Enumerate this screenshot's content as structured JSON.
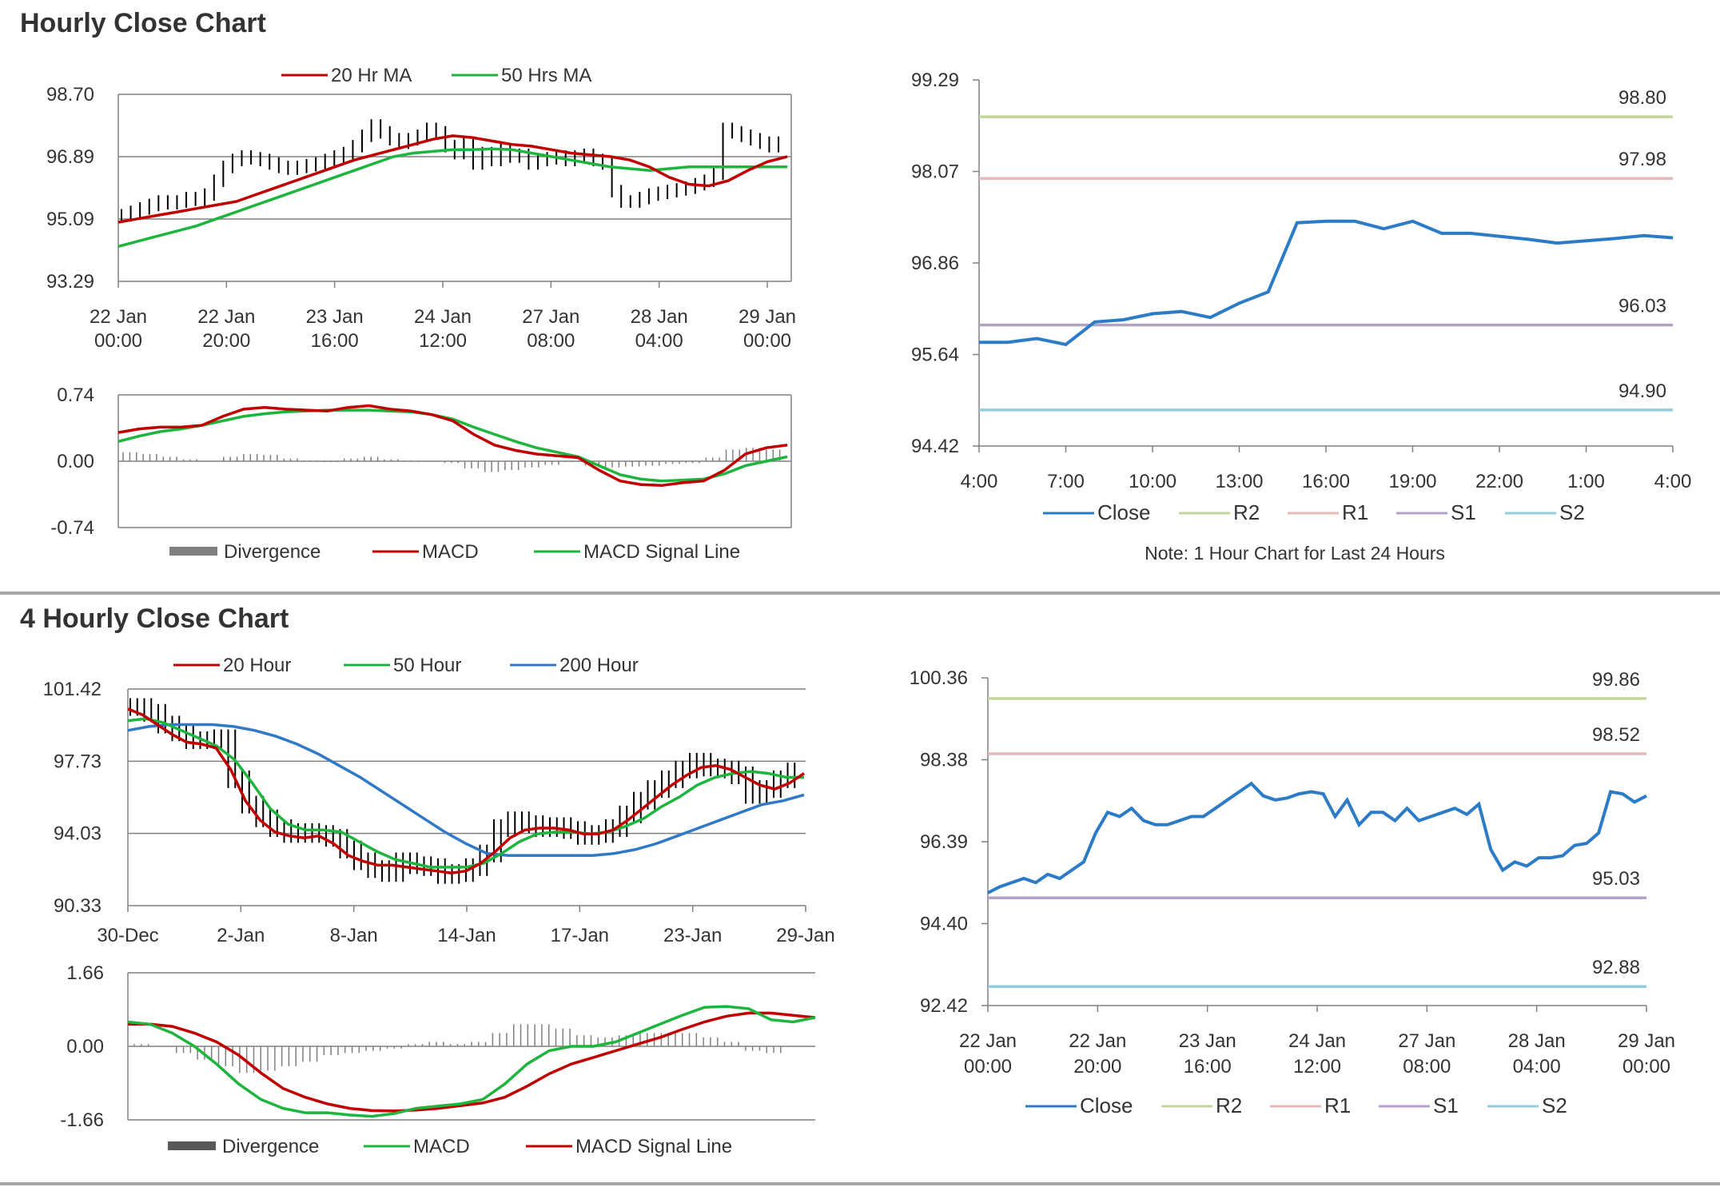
{
  "sections": {
    "hourly_title": "Hourly Close Chart",
    "four_hourly_title": "4 Hourly Close Chart"
  },
  "colors": {
    "ma_red": "#c00000",
    "ma_green": "#1db53e",
    "ma_blue": "#2f79c7",
    "close_blue": "#2b7bc6",
    "r2": "#c3d69b",
    "r1": "#e6b9b8",
    "s1": "#b3a2c7",
    "s2": "#93cddd",
    "grid": "#808080",
    "divergence": "#7f7f7f"
  },
  "chart_data": [
    {
      "id": "hourly-price",
      "type": "line",
      "legend": [
        "20 Hr MA",
        "50 Hrs MA"
      ],
      "ylim": [
        93.29,
        98.7
      ],
      "yticks": [
        "98.70",
        "96.89",
        "95.09",
        "93.29"
      ],
      "xticks": [
        [
          "22 Jan",
          "00:00"
        ],
        [
          "22 Jan",
          "20:00"
        ],
        [
          "23 Jan",
          "16:00"
        ],
        [
          "24 Jan",
          "12:00"
        ],
        [
          "27 Jan",
          "08:00"
        ],
        [
          "28 Jan",
          "04:00"
        ],
        [
          "29 Jan",
          "00:00"
        ]
      ],
      "close": [
        95.2,
        95.3,
        95.4,
        95.5,
        95.6,
        95.55,
        95.6,
        95.7,
        95.65,
        95.8,
        96.2,
        96.6,
        96.8,
        96.9,
        96.85,
        96.8,
        96.7,
        96.6,
        96.55,
        96.6,
        96.65,
        96.7,
        96.8,
        96.9,
        97.0,
        97.2,
        97.5,
        97.8,
        97.6,
        97.4,
        97.3,
        97.4,
        97.5,
        97.7,
        97.6,
        97.2,
        97.0,
        97.3,
        96.7,
        97.0,
        96.8,
        97.1,
        96.9,
        96.95,
        96.7,
        96.8,
        96.85,
        96.9,
        96.8,
        96.9,
        96.95,
        96.8,
        96.7,
        95.9,
        95.6,
        95.6,
        95.7,
        95.8,
        95.85,
        95.9,
        95.95,
        96.0,
        96.1,
        96.2,
        96.4,
        97.7,
        97.6,
        97.5,
        97.4,
        97.3,
        97.2,
        97.3
      ],
      "ma20": [
        95.0,
        95.1,
        95.2,
        95.3,
        95.4,
        95.5,
        95.6,
        95.8,
        96.0,
        96.2,
        96.4,
        96.6,
        96.8,
        96.95,
        97.1,
        97.25,
        97.4,
        97.5,
        97.45,
        97.35,
        97.25,
        97.2,
        97.1,
        97.0,
        96.95,
        96.9,
        96.8,
        96.6,
        96.3,
        96.1,
        96.05,
        96.2,
        96.5,
        96.75,
        96.9
      ],
      "ma50": [
        94.3,
        94.45,
        94.6,
        94.75,
        94.9,
        95.1,
        95.3,
        95.5,
        95.7,
        95.9,
        96.1,
        96.3,
        96.5,
        96.7,
        96.9,
        97.0,
        97.05,
        97.1,
        97.1,
        97.12,
        97.1,
        97.0,
        96.9,
        96.8,
        96.7,
        96.6,
        96.55,
        96.5,
        96.55,
        96.6,
        96.6,
        96.6,
        96.6,
        96.6,
        96.6
      ]
    },
    {
      "id": "hourly-macd",
      "type": "line",
      "legend": [
        "Divergence",
        "MACD",
        "MACD Signal Line"
      ],
      "ylim": [
        -0.74,
        0.74
      ],
      "yticks": [
        "0.74",
        "0.00",
        "-0.74"
      ],
      "macd": [
        0.32,
        0.36,
        0.38,
        0.38,
        0.4,
        0.5,
        0.58,
        0.6,
        0.58,
        0.57,
        0.56,
        0.6,
        0.62,
        0.58,
        0.56,
        0.52,
        0.45,
        0.3,
        0.18,
        0.12,
        0.08,
        0.06,
        0.04,
        -0.1,
        -0.22,
        -0.26,
        -0.27,
        -0.24,
        -0.22,
        -0.1,
        0.08,
        0.15,
        0.18
      ],
      "signal": [
        0.22,
        0.28,
        0.33,
        0.36,
        0.4,
        0.45,
        0.5,
        0.53,
        0.55,
        0.56,
        0.57,
        0.57,
        0.57,
        0.56,
        0.55,
        0.52,
        0.47,
        0.38,
        0.3,
        0.22,
        0.15,
        0.1,
        0.05,
        -0.05,
        -0.15,
        -0.2,
        -0.22,
        -0.21,
        -0.2,
        -0.14,
        -0.05,
        0.0,
        0.05
      ],
      "divergence": [
        0.1,
        0.08,
        0.05,
        0.02,
        0.0,
        0.05,
        0.08,
        0.07,
        0.03,
        0.01,
        -0.01,
        0.03,
        0.05,
        0.02,
        0.01,
        0.0,
        -0.02,
        -0.08,
        -0.12,
        -0.1,
        -0.07,
        -0.04,
        -0.01,
        -0.05,
        -0.07,
        -0.06,
        -0.05,
        -0.03,
        -0.02,
        0.04,
        0.13,
        0.15,
        0.13
      ]
    },
    {
      "id": "hourly-close-24h",
      "type": "line",
      "legend": [
        "Close",
        "R2",
        "R1",
        "S1",
        "S2"
      ],
      "ylim": [
        94.42,
        99.29
      ],
      "yticks": [
        "99.29",
        "98.07",
        "96.86",
        "95.64",
        "94.42"
      ],
      "xticks": [
        "4:00",
        "7:00",
        "10:00",
        "13:00",
        "16:00",
        "19:00",
        "22:00",
        "1:00",
        "4:00"
      ],
      "levels": {
        "R2": 98.8,
        "R1": 97.98,
        "S1": 96.03,
        "S2": 94.9
      },
      "level_labels": {
        "R2": "98.80",
        "R1": "97.98",
        "S1": "96.03",
        "S2": "94.90"
      },
      "close": [
        95.8,
        95.8,
        95.85,
        95.77,
        96.07,
        96.1,
        96.18,
        96.21,
        96.13,
        96.32,
        96.47,
        97.39,
        97.41,
        97.41,
        97.31,
        97.41,
        97.25,
        97.25,
        97.21,
        97.17,
        97.12,
        97.15,
        97.18,
        97.22,
        97.19
      ],
      "note": "Note: 1 Hour Chart for Last 24 Hours"
    },
    {
      "id": "four-hourly-price",
      "type": "line",
      "legend": [
        "20 Hour",
        "50 Hour",
        "200 Hour"
      ],
      "ylim": [
        90.33,
        101.42
      ],
      "yticks": [
        "101.42",
        "97.73",
        "94.03",
        "90.33"
      ],
      "xticks": [
        "30-Dec",
        "2-Jan",
        "8-Jan",
        "14-Jan",
        "17-Jan",
        "23-Jan",
        "29-Jan"
      ],
      "close": [
        100.5,
        100.2,
        99.6,
        99.2,
        98.8,
        98.8,
        98.9,
        96.8,
        95.5,
        94.8,
        94.3,
        94.0,
        94.1,
        94.0,
        93.8,
        93.2,
        92.6,
        92.2,
        92.0,
        92.6,
        92.4,
        92.3,
        91.9,
        92.0,
        92.3,
        93.0,
        94.3,
        94.7,
        94.5,
        94.3,
        94.4,
        94.2,
        93.9,
        94.0,
        94.3,
        95.0,
        95.7,
        96.3,
        96.8,
        97.3,
        97.7,
        97.4,
        97.3,
        97.0,
        96.0,
        96.3,
        96.8,
        97.2
      ],
      "ma20": [
        100.4,
        100.1,
        99.6,
        99.1,
        98.7,
        98.6,
        98.4,
        97.3,
        95.7,
        94.7,
        94.1,
        93.9,
        93.8,
        93.9,
        93.5,
        92.9,
        92.6,
        92.4,
        92.4,
        92.3,
        92.2,
        92.1,
        92.0,
        92.1,
        92.5,
        93.1,
        93.8,
        94.2,
        94.3,
        94.3,
        94.2,
        94.0,
        94.0,
        94.2,
        94.7,
        95.3,
        95.9,
        96.5,
        97.0,
        97.4,
        97.5,
        97.3,
        96.9,
        96.5,
        96.3,
        96.6,
        97.1
      ],
      "ma50": [
        99.8,
        99.9,
        99.7,
        99.3,
        98.9,
        98.5,
        97.8,
        96.6,
        95.3,
        94.5,
        94.2,
        94.2,
        94.1,
        93.6,
        93.1,
        92.7,
        92.5,
        92.3,
        92.3,
        92.3,
        92.5,
        93.0,
        93.6,
        94.0,
        94.1,
        94.1,
        94.0,
        94.1,
        94.4,
        94.8,
        95.4,
        95.9,
        96.5,
        96.9,
        97.1,
        97.2,
        97.1,
        96.9,
        96.9
      ],
      "ma200": [
        99.3,
        99.5,
        99.6,
        99.6,
        99.5,
        99.4,
        99.1,
        98.7,
        98.2,
        97.6,
        97.0,
        96.3,
        95.7,
        95.1,
        94.4,
        93.8,
        93.3,
        92.9,
        92.9,
        92.9,
        92.9,
        92.9,
        93.0,
        93.2,
        93.5,
        93.9,
        94.3,
        94.7,
        95.1,
        95.5,
        95.7,
        96.0
      ],
      "ma200_bar": [
        99.3,
        99.5,
        99.6,
        99.6,
        99.6,
        99.5,
        99.3,
        99.0,
        98.6,
        98.1,
        97.5,
        96.9,
        96.2,
        95.5,
        94.8,
        94.1,
        93.5,
        93.0,
        92.9,
        92.9,
        92.9,
        92.9,
        92.9,
        93.0,
        93.2,
        93.5,
        93.9,
        94.3,
        94.7,
        95.1,
        95.5,
        95.7,
        96.0
      ]
    },
    {
      "id": "four-hourly-macd",
      "type": "line",
      "legend": [
        "Divergence",
        "MACD",
        "MACD Signal Line"
      ],
      "ylim": [
        -1.66,
        1.66
      ],
      "yticks": [
        "1.66",
        "0.00",
        "-1.66"
      ],
      "macd": [
        0.55,
        0.5,
        0.3,
        0.0,
        -0.4,
        -0.85,
        -1.2,
        -1.4,
        -1.5,
        -1.5,
        -1.55,
        -1.58,
        -1.52,
        -1.4,
        -1.35,
        -1.3,
        -1.2,
        -0.85,
        -0.4,
        -0.1,
        0.0,
        0.0,
        0.1,
        0.3,
        0.5,
        0.7,
        0.88,
        0.9,
        0.85,
        0.6,
        0.55,
        0.65
      ],
      "signal": [
        0.5,
        0.5,
        0.45,
        0.3,
        0.1,
        -0.2,
        -0.6,
        -0.95,
        -1.15,
        -1.3,
        -1.4,
        -1.45,
        -1.46,
        -1.44,
        -1.4,
        -1.34,
        -1.28,
        -1.15,
        -0.9,
        -0.62,
        -0.4,
        -0.25,
        -0.1,
        0.05,
        0.2,
        0.38,
        0.55,
        0.68,
        0.75,
        0.75,
        0.7,
        0.65
      ],
      "divergence": [
        0.05,
        0.0,
        -0.15,
        -0.3,
        -0.45,
        -0.6,
        -0.55,
        -0.45,
        -0.35,
        -0.2,
        -0.15,
        -0.1,
        -0.05,
        0.05,
        0.1,
        0.05,
        0.1,
        0.3,
        0.5,
        0.5,
        0.4,
        0.25,
        0.2,
        0.25,
        0.3,
        0.3,
        0.3,
        0.2,
        0.1,
        -0.1,
        -0.15,
        0.0
      ]
    },
    {
      "id": "hourly-close-1w",
      "type": "line",
      "legend": [
        "Close",
        "R2",
        "R1",
        "S1",
        "S2"
      ],
      "ylim": [
        92.42,
        100.36
      ],
      "yticks": [
        "100.36",
        "98.38",
        "96.39",
        "94.40",
        "92.42"
      ],
      "xticks": [
        [
          "22 Jan",
          "00:00"
        ],
        [
          "22 Jan",
          "20:00"
        ],
        [
          "23 Jan",
          "16:00"
        ],
        [
          "24 Jan",
          "12:00"
        ],
        [
          "27 Jan",
          "08:00"
        ],
        [
          "28 Jan",
          "04:00"
        ],
        [
          "29 Jan",
          "00:00"
        ]
      ],
      "levels": {
        "R2": 99.86,
        "R1": 98.52,
        "S1": 95.03,
        "S2": 92.88
      },
      "level_labels": {
        "R2": "99.86",
        "R1": "98.52",
        "S1": "95.03",
        "S2": "92.88"
      },
      "close": [
        95.15,
        95.3,
        95.4,
        95.5,
        95.4,
        95.6,
        95.5,
        95.7,
        95.9,
        96.6,
        97.1,
        97.0,
        97.2,
        96.9,
        96.8,
        96.8,
        96.9,
        97.0,
        97.0,
        97.2,
        97.4,
        97.6,
        97.8,
        97.5,
        97.4,
        97.45,
        97.55,
        97.6,
        97.55,
        97.0,
        97.4,
        96.8,
        97.1,
        97.1,
        96.9,
        97.2,
        96.9,
        97.0,
        97.1,
        97.2,
        97.05,
        97.3,
        96.2,
        95.7,
        95.9,
        95.8,
        96.0,
        96.0,
        96.05,
        96.3,
        96.35,
        96.6,
        97.6,
        97.55,
        97.35,
        97.5
      ]
    }
  ]
}
